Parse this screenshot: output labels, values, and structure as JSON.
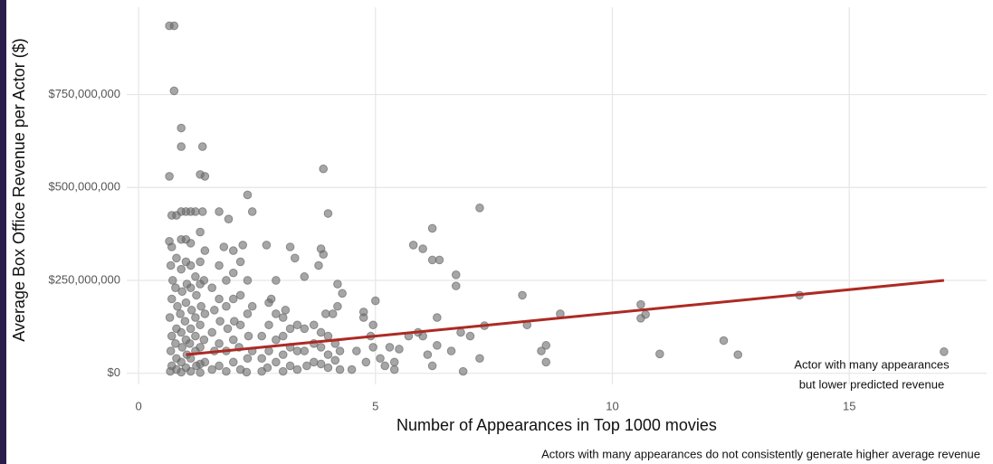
{
  "chart_data": {
    "type": "scatter",
    "xlabel": "Number of Appearances in Top 1000 movies",
    "ylabel": "Average Box Office Revenue per Actor ($)",
    "annotation": [
      "Actor with many appearances",
      "but lower predicted revenue"
    ],
    "caption": "Actors with many appearances do not consistently generate higher average revenue",
    "color": "#6b6b6b",
    "xlim": [
      -0.25,
      17.9
    ],
    "ylim": [
      -30000000,
      985000000
    ],
    "xticks": [
      0,
      5,
      10,
      15
    ],
    "yticks": [
      {
        "value": 0,
        "label": "$0"
      },
      {
        "value": 250000000,
        "label": "$250,000,000"
      },
      {
        "value": 500000000,
        "label": "$500,000,000"
      },
      {
        "value": 750000000,
        "label": "$750,000,000"
      }
    ],
    "grid": true,
    "trend": {
      "x": [
        1,
        17
      ],
      "values": [
        50000000,
        250000000
      ],
      "color": "#ad2a24"
    },
    "x": [
      0.65,
      0.75,
      0.75,
      0.9,
      0.9,
      1.35,
      0.65,
      1.3,
      1.4,
      0.7,
      0.8,
      0.9,
      1.0,
      1.1,
      1.2,
      1.35,
      0.65,
      0.7,
      0.9,
      1.0,
      1.1,
      1.3,
      1.4,
      1.7,
      1.9,
      2.3,
      2.4,
      1.8,
      2.0,
      2.2,
      2.7,
      3.2,
      3.9,
      4.0,
      3.85,
      3.9,
      3.8,
      4.3,
      4.2,
      7.2,
      6.2,
      5.8,
      6.0,
      6.2,
      6.35,
      6.7,
      6.7,
      8.1,
      10.6,
      10.6,
      10.7,
      13.95,
      17.0,
      12.35,
      12.65,
      11.0,
      8.9,
      8.2,
      8.6,
      8.5,
      8.6,
      7.3,
      7.2,
      7.0,
      6.8,
      6.85,
      6.6,
      6.3,
      6.3,
      6.1,
      6.0,
      5.9,
      5.7,
      5.5,
      5.0,
      4.95,
      4.9,
      4.95,
      5.1,
      5.2,
      5.3,
      5.4,
      5.4,
      4.75,
      4.75,
      4.6,
      4.5,
      4.8,
      6.2,
      0.68,
      0.72,
      0.7,
      0.66,
      0.7,
      0.68,
      0.7,
      0.67,
      0.8,
      0.78,
      0.82,
      0.8,
      0.78,
      0.8,
      0.8,
      0.9,
      0.92,
      0.88,
      0.9,
      0.92,
      0.9,
      0.9,
      1.0,
      1.02,
      1.0,
      0.98,
      1.0,
      1.02,
      1.0,
      1.1,
      1.1,
      1.12,
      1.1,
      1.08,
      1.1,
      1.1,
      1.2,
      1.22,
      1.2,
      1.2,
      1.2,
      1.22,
      1.3,
      1.3,
      1.32,
      1.3,
      1.3,
      1.3,
      1.3,
      1.38,
      1.4,
      1.38,
      1.4,
      1.55,
      1.6,
      1.55,
      1.6,
      1.55,
      1.7,
      1.7,
      1.72,
      1.7,
      1.7,
      1.85,
      1.85,
      1.88,
      1.85,
      1.85,
      2.0,
      2.0,
      2.02,
      2.0,
      2.0,
      2.15,
      2.15,
      2.15,
      2.12,
      2.15,
      2.3,
      2.3,
      2.32,
      2.3,
      2.28,
      2.4,
      2.4,
      2.6,
      2.6,
      2.6,
      2.75,
      2.75,
      2.75,
      2.72,
      2.9,
      2.9,
      2.9,
      3.05,
      3.05,
      3.05,
      3.05,
      3.2,
      3.2,
      3.2,
      3.35,
      3.35,
      3.35,
      2.8,
      3.1,
      3.5,
      2.9,
      3.3,
      3.5,
      3.5,
      3.55,
      3.7,
      3.7,
      3.7,
      3.85,
      3.85,
      3.85,
      4.0,
      4.0,
      4.0,
      4.15,
      4.15,
      4.25,
      4.25,
      4.1,
      4.2,
      3.95
    ],
    "values": [
      935000000,
      935000000,
      760000000,
      660000000,
      610000000,
      610000000,
      530000000,
      535000000,
      530000000,
      425000000,
      425000000,
      435000000,
      435000000,
      435000000,
      435000000,
      435000000,
      355000000,
      340000000,
      360000000,
      360000000,
      350000000,
      380000000,
      330000000,
      435000000,
      415000000,
      480000000,
      435000000,
      340000000,
      330000000,
      345000000,
      345000000,
      340000000,
      550000000,
      430000000,
      335000000,
      320000000,
      290000000,
      215000000,
      240000000,
      445000000,
      390000000,
      345000000,
      335000000,
      305000000,
      305000000,
      265000000,
      235000000,
      210000000,
      185000000,
      148000000,
      158000000,
      210000000,
      58000000,
      88000000,
      50000000,
      52000000,
      160000000,
      130000000,
      75000000,
      60000000,
      30000000,
      128000000,
      40000000,
      100000000,
      110000000,
      5000000,
      60000000,
      150000000,
      75000000,
      50000000,
      100000000,
      110000000,
      100000000,
      65000000,
      195000000,
      130000000,
      100000000,
      70000000,
      40000000,
      20000000,
      70000000,
      30000000,
      10000000,
      165000000,
      150000000,
      60000000,
      10000000,
      30000000,
      20000000,
      290000000,
      250000000,
      200000000,
      150000000,
      100000000,
      60000000,
      20000000,
      5000000,
      310000000,
      230000000,
      180000000,
      120000000,
      80000000,
      40000000,
      10000000,
      280000000,
      220000000,
      160000000,
      110000000,
      70000000,
      30000000,
      3000000,
      300000000,
      240000000,
      190000000,
      140000000,
      90000000,
      50000000,
      15000000,
      290000000,
      230000000,
      170000000,
      120000000,
      80000000,
      40000000,
      5000000,
      260000000,
      210000000,
      150000000,
      100000000,
      60000000,
      20000000,
      300000000,
      240000000,
      180000000,
      130000000,
      70000000,
      25000000,
      2000000,
      250000000,
      160000000,
      90000000,
      30000000,
      230000000,
      170000000,
      110000000,
      60000000,
      10000000,
      290000000,
      200000000,
      140000000,
      80000000,
      20000000,
      250000000,
      180000000,
      120000000,
      60000000,
      5000000,
      270000000,
      200000000,
      140000000,
      90000000,
      30000000,
      300000000,
      210000000,
      130000000,
      70000000,
      10000000,
      250000000,
      160000000,
      100000000,
      40000000,
      3000000,
      180000000,
      60000000,
      100000000,
      40000000,
      5000000,
      190000000,
      130000000,
      60000000,
      15000000,
      160000000,
      90000000,
      30000000,
      150000000,
      100000000,
      50000000,
      5000000,
      120000000,
      70000000,
      20000000,
      130000000,
      60000000,
      10000000,
      200000000,
      170000000,
      260000000,
      250000000,
      310000000,
      120000000,
      60000000,
      20000000,
      130000000,
      80000000,
      30000000,
      110000000,
      70000000,
      25000000,
      100000000,
      50000000,
      15000000,
      80000000,
      35000000,
      60000000,
      10000000,
      160000000,
      180000000,
      160000000
    ]
  }
}
